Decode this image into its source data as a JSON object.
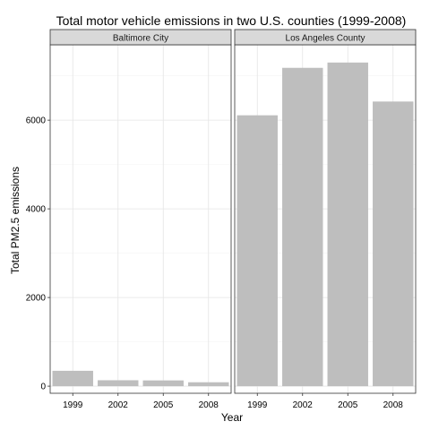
{
  "chart_data": {
    "type": "bar",
    "title": "Total motor vehicle emissions in two U.S. counties (1999-2008)",
    "xlabel": "Year",
    "ylabel": "Total PM2.5 emissions",
    "categories": [
      "1999",
      "2002",
      "2005",
      "2008"
    ],
    "ylim": [
      -160,
      7700
    ],
    "yticks": [
      0,
      2000,
      4000,
      6000
    ],
    "grid": true,
    "facets": [
      {
        "label": "Baltimore City",
        "values": [
          347,
          134,
          130,
          88
        ]
      },
      {
        "label": "Los Angeles County",
        "values": [
          6110,
          7180,
          7300,
          6420
        ]
      }
    ],
    "colors": {
      "bar": "#bebebe",
      "grid_major": "#e5e5e5",
      "grid_minor": "#f3f3f3",
      "strip_fill": "#d9d9d9",
      "panel_border": "#333333"
    }
  }
}
